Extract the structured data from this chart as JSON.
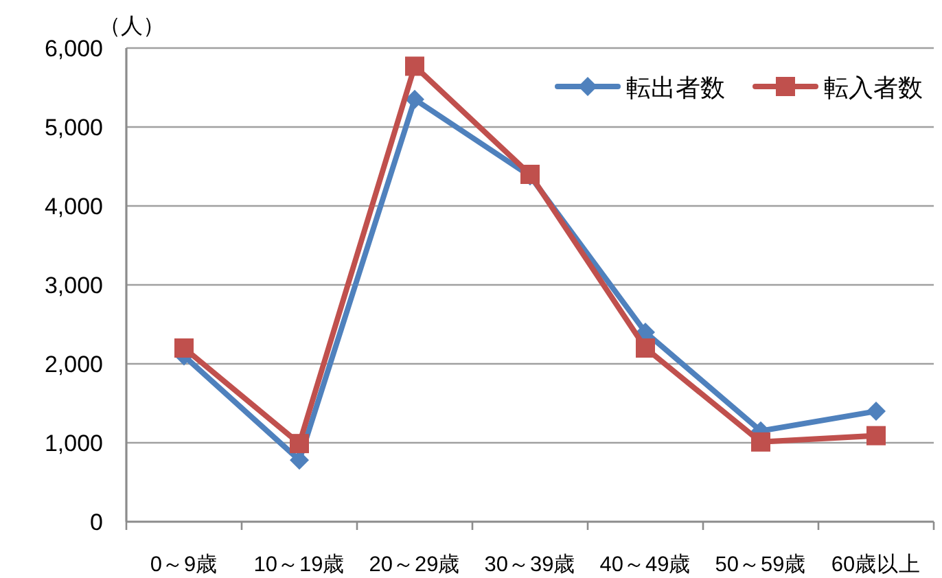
{
  "chart_data": {
    "type": "line",
    "ylabel": "（人）",
    "categories": [
      "0～9歳",
      "10～19歳",
      "20～29歳",
      "30～39歳",
      "40～49歳",
      "50～59歳",
      "60歳以上"
    ],
    "series": [
      {
        "name": "転出者数",
        "color": "#4f81bd",
        "marker": "diamond",
        "values": [
          2100,
          780,
          5350,
          4380,
          2400,
          1150,
          1400
        ]
      },
      {
        "name": "転入者数",
        "color": "#c0504d",
        "marker": "square",
        "values": [
          2200,
          990,
          5770,
          4400,
          2200,
          1010,
          1090
        ]
      }
    ],
    "ylim": [
      0,
      6000
    ],
    "yticks": [
      0,
      {
        "value": 1000,
        "label": "1,000"
      },
      {
        "value": 2000,
        "label": "2,000"
      },
      {
        "value": 3000,
        "label": "3,000"
      },
      {
        "value": 4000,
        "label": "4,000"
      },
      {
        "value": 5000,
        "label": "5,000"
      },
      {
        "value": 6000,
        "label": "6,000"
      }
    ],
    "grid": "y",
    "legend": "top right"
  }
}
